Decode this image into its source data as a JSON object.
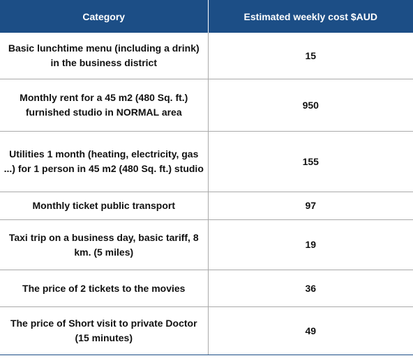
{
  "table": {
    "headers": {
      "category": "Category",
      "cost": "Estimated weekly cost $AUD"
    },
    "rows": [
      {
        "category": "Basic lunchtime menu (including a drink) in the business district",
        "cost": "15"
      },
      {
        "category": "Monthly rent for a 45 m2 (480 Sq. ft.) furnished studio in NORMAL area",
        "cost": "950"
      },
      {
        "category": "Utilities 1 month (heating, electricity, gas ...) for 1 person in 45 m2 (480 Sq. ft.) studio",
        "cost": "155"
      },
      {
        "category": "Monthly ticket public transport",
        "cost": "97"
      },
      {
        "category": "Taxi trip on a business day, basic tariff, 8 km. (5 miles)",
        "cost": "19"
      },
      {
        "category": "The price of 2 tickets to the movies",
        "cost": "36"
      },
      {
        "category": "The price of Short visit to private Doctor (15 minutes)",
        "cost": "49"
      }
    ]
  },
  "colors": {
    "header_background": "#1c4e86",
    "header_text": "#ffffff",
    "grid_line": "#a9a9a9"
  }
}
